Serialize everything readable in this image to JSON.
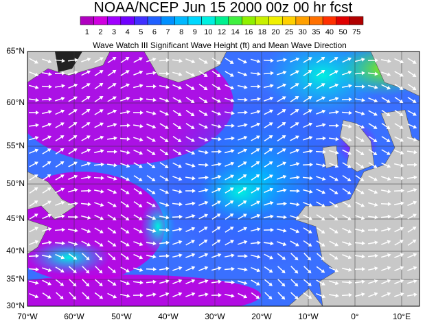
{
  "header": {
    "title": "NOAA/NCEP Jun 15 2000 00z 00 hr fcst",
    "subtitle": "Wave Watch III Significant Wave Height (ft) and Mean Wave Direction"
  },
  "colorbar": {
    "labels": [
      "1",
      "2",
      "3",
      "4",
      "5",
      "6",
      "7",
      "8",
      "9",
      "10",
      "12",
      "14",
      "16",
      "18",
      "20",
      "25",
      "30",
      "35",
      "40",
      "50",
      "75"
    ],
    "colors": [
      "#b000c0",
      "#d000e0",
      "#a000ff",
      "#7000ff",
      "#4030ff",
      "#2060ff",
      "#0090ff",
      "#00b8ff",
      "#00d8ff",
      "#00f0e0",
      "#00f090",
      "#40f040",
      "#90f000",
      "#c8f000",
      "#f0f000",
      "#ffd000",
      "#ffa000",
      "#ff7000",
      "#ff3000",
      "#e00000",
      "#b00000"
    ]
  },
  "map": {
    "lat_labels": [
      "65°N",
      "60°N",
      "55°N",
      "50°N",
      "45°N",
      "40°N",
      "35°N",
      "30°N"
    ],
    "lon_labels": [
      "70°W",
      "60°W",
      "50°W",
      "40°W",
      "30°W",
      "20°W",
      "10°W",
      "0°",
      "10°E"
    ]
  }
}
